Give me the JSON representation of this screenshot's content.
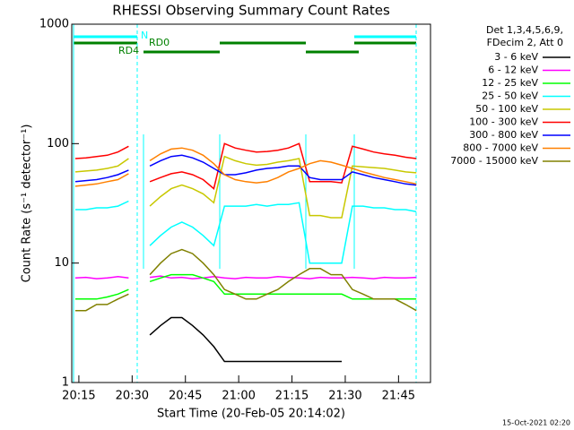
{
  "chart_data": {
    "type": "line",
    "title": "RHESSI Observing Summary Count Rates",
    "x_label": "Start Time (20-Feb-05 20:14:02)",
    "y_label": "Count Rate (s⁻¹ detector⁻¹)",
    "legend_title": [
      "Det 1,3,4,5,6,9,",
      "FDecim 2, Att 0"
    ],
    "annotations": [
      "N",
      "RD0",
      "RD4"
    ],
    "footer": "15-Oct-2021 02:20",
    "log_y": true,
    "xlim": [
      1213,
      1314
    ],
    "xticks": [
      {
        "value": 1215,
        "label": "20:15"
      },
      {
        "value": 1230,
        "label": "20:30"
      },
      {
        "value": 1245,
        "label": "20:45"
      },
      {
        "value": 1260,
        "label": "21:00"
      },
      {
        "value": 1275,
        "label": "21:15"
      },
      {
        "value": 1290,
        "label": "21:30"
      },
      {
        "value": 1305,
        "label": "21:45"
      }
    ],
    "ylim": [
      1,
      1000
    ],
    "yticks": [
      1,
      10,
      100,
      1000
    ],
    "x": [
      1214,
      1217,
      1220,
      1223,
      1226,
      1229,
      1232,
      1235,
      1238,
      1241,
      1244,
      1247,
      1250,
      1253,
      1256,
      1259,
      1262,
      1265,
      1268,
      1271,
      1274,
      1277,
      1280,
      1283,
      1286,
      1289,
      1292,
      1295,
      1298,
      1301,
      1304,
      1307,
      1310
    ],
    "series": [
      {
        "name": "3 - 6 keV",
        "color": "#000000",
        "values": [
          null,
          null,
          null,
          null,
          null,
          null,
          null,
          2.5,
          3,
          3.5,
          3.5,
          3,
          2.5,
          2,
          1.5,
          1.5,
          1.5,
          1.5,
          1.5,
          1.5,
          1.5,
          1.5,
          1.5,
          1.5,
          1.5,
          1.5,
          null,
          null,
          null,
          null,
          null,
          null,
          null
        ]
      },
      {
        "name": "6 - 12 keV",
        "color": "#ff00ff",
        "values": [
          7.5,
          7.6,
          7.4,
          7.5,
          7.7,
          7.5,
          null,
          7.6,
          7.8,
          7.5,
          7.6,
          7.4,
          7.5,
          7.7,
          7.5,
          7.4,
          7.6,
          7.5,
          7.5,
          7.7,
          7.6,
          7.5,
          7.4,
          7.6,
          7.5,
          7.5,
          7.6,
          7.5,
          7.4,
          7.6,
          7.5,
          7.5,
          7.6
        ]
      },
      {
        "name": "12 - 25 keV",
        "color": "#00ff00",
        "values": [
          5,
          5,
          5,
          5.2,
          5.5,
          6,
          null,
          7,
          7.5,
          8,
          8,
          8,
          7.5,
          7,
          5.5,
          5.5,
          5.5,
          5.5,
          5.5,
          5.5,
          5.5,
          5.5,
          5.5,
          5.5,
          5.5,
          5.5,
          5,
          5,
          5,
          5,
          5,
          5,
          5
        ]
      },
      {
        "name": "25 - 50 keV",
        "color": "#00ffff",
        "values": [
          28,
          28,
          29,
          29,
          30,
          33,
          null,
          14,
          17,
          20,
          22,
          20,
          17,
          14,
          30,
          30,
          30,
          31,
          30,
          31,
          31,
          32,
          10,
          10,
          10,
          10,
          30,
          30,
          29,
          29,
          28,
          28,
          27
        ]
      },
      {
        "name": "50 - 100 keV",
        "color": "#c8c800",
        "values": [
          58,
          59,
          60,
          62,
          65,
          75,
          null,
          30,
          36,
          42,
          45,
          42,
          38,
          32,
          78,
          72,
          68,
          66,
          67,
          70,
          72,
          75,
          25,
          25,
          24,
          24,
          65,
          64,
          63,
          62,
          60,
          58,
          57
        ]
      },
      {
        "name": "100 - 300 keV",
        "color": "#ff0000",
        "values": [
          75,
          76,
          78,
          80,
          85,
          95,
          null,
          48,
          52,
          56,
          58,
          55,
          50,
          42,
          100,
          92,
          88,
          85,
          86,
          88,
          92,
          100,
          48,
          48,
          48,
          47,
          95,
          90,
          85,
          82,
          80,
          77,
          75
        ]
      },
      {
        "name": "300 - 800 keV",
        "color": "#0000ff",
        "values": [
          48,
          49,
          50,
          52,
          55,
          60,
          null,
          65,
          72,
          78,
          80,
          76,
          70,
          62,
          55,
          55,
          57,
          60,
          62,
          63,
          65,
          65,
          52,
          50,
          50,
          50,
          58,
          55,
          52,
          50,
          48,
          46,
          45
        ]
      },
      {
        "name": "800 - 7000 keV",
        "color": "#ff8000",
        "values": [
          44,
          45,
          46,
          48,
          50,
          56,
          null,
          72,
          82,
          90,
          92,
          88,
          80,
          68,
          55,
          50,
          48,
          47,
          48,
          52,
          58,
          62,
          68,
          72,
          70,
          66,
          62,
          58,
          55,
          52,
          50,
          48,
          46
        ]
      },
      {
        "name": "7000 - 15000 keV",
        "color": "#808000",
        "values": [
          4,
          4,
          4.5,
          4.5,
          5,
          5.5,
          null,
          8,
          10,
          12,
          13,
          12,
          10,
          8,
          6,
          5.5,
          5,
          5,
          5.5,
          6,
          7,
          8,
          9,
          9,
          8,
          8,
          6,
          5.5,
          5,
          5,
          5,
          4.5,
          4
        ]
      }
    ]
  }
}
